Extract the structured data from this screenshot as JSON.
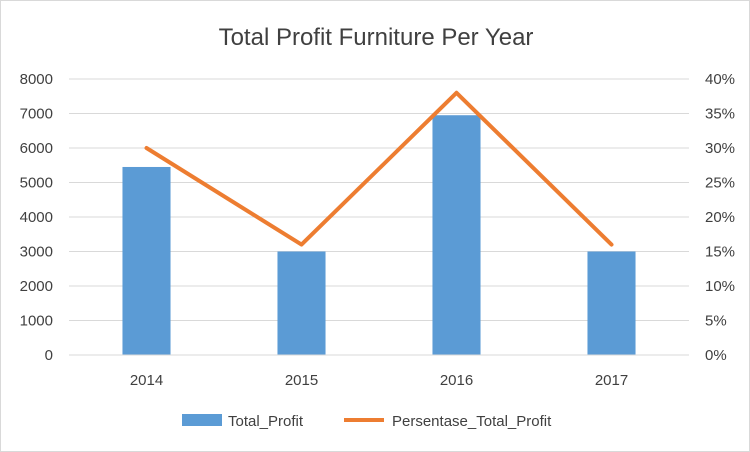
{
  "chart_data": {
    "type": "bar",
    "title": "Total Profit Furniture Per Year",
    "categories": [
      "2014",
      "2015",
      "2016",
      "2017"
    ],
    "series": [
      {
        "name": "Total_Profit",
        "type": "bar",
        "axis": "left",
        "values": [
          5450,
          3000,
          6950,
          3000
        ],
        "color": "#5b9bd5"
      },
      {
        "name": "Persentase_Total_Profit",
        "type": "line",
        "axis": "right",
        "values": [
          0.3,
          0.16,
          0.38,
          0.16
        ],
        "color": "#ed7d31"
      }
    ],
    "y_left": {
      "range": [
        0,
        8000
      ],
      "ticks": [
        "0",
        "1000",
        "2000",
        "3000",
        "4000",
        "5000",
        "6000",
        "7000",
        "8000"
      ]
    },
    "y_right": {
      "range": [
        0,
        0.4
      ],
      "ticks": [
        "0%",
        "5%",
        "10%",
        "15%",
        "20%",
        "25%",
        "30%",
        "35%",
        "40%"
      ]
    },
    "grid": true,
    "legend_position": "bottom"
  }
}
